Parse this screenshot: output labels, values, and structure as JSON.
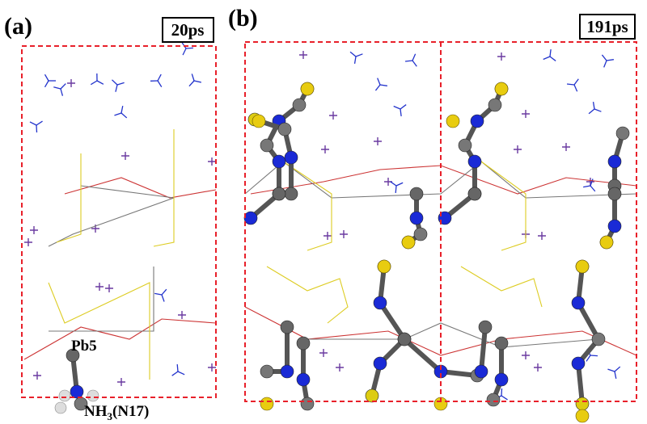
{
  "panels": [
    {
      "label": "(a)",
      "time": "20ps",
      "annotations": {
        "pb": "Pb5",
        "nh3": {
          "text": "NH",
          "sub": "3",
          "tail": "(N17)"
        }
      }
    },
    {
      "label": "(b)",
      "time": "191ps"
    }
  ]
}
